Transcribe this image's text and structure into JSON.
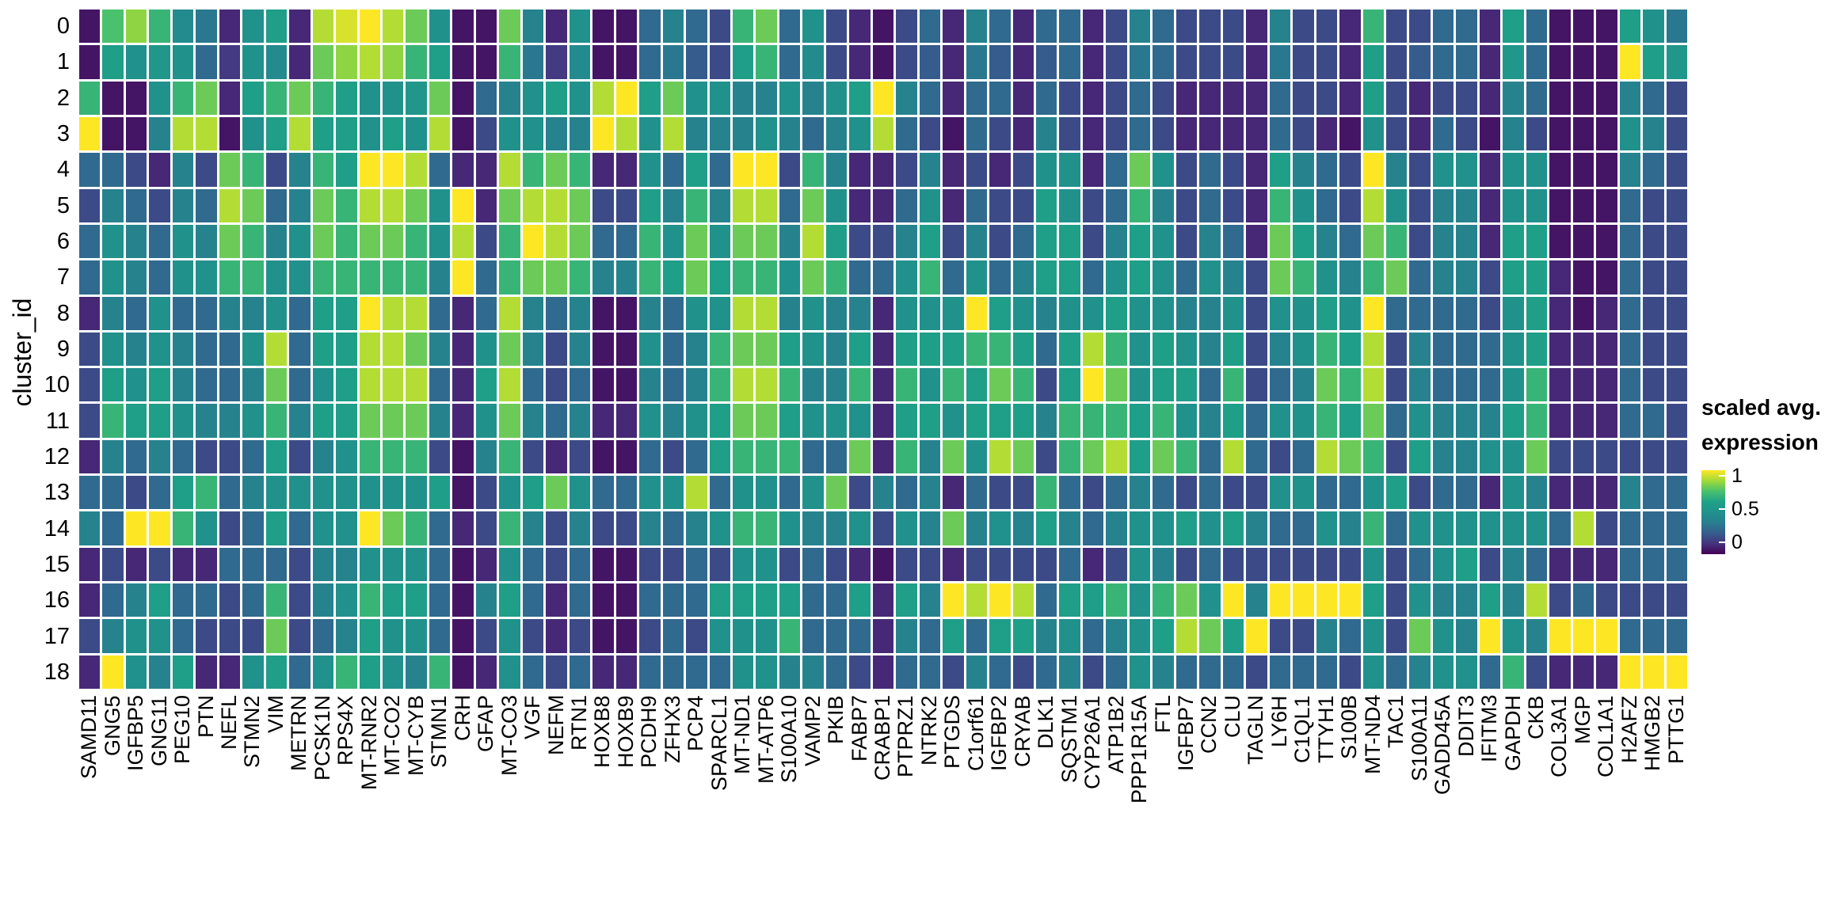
{
  "figure": {
    "y_axis_title": "cluster_id",
    "legend": {
      "title_line1": "scaled avg.",
      "title_line2": "expression",
      "ticks": [
        "1",
        "0.5",
        "0"
      ]
    },
    "colors": {
      "viridis_low": "#440154",
      "viridis_mid": "#21918c",
      "viridis_high": "#fde725",
      "grid_line": "#ffffff"
    }
  },
  "chart_data": {
    "type": "heatmap",
    "title": "",
    "xlabel": "",
    "ylabel": "cluster_id",
    "legend_title": "scaled avg. expression",
    "colormap": "viridis",
    "color_range": [
      0,
      1
    ],
    "rows": [
      "0",
      "1",
      "2",
      "3",
      "4",
      "5",
      "6",
      "7",
      "8",
      "9",
      "10",
      "11",
      "12",
      "13",
      "14",
      "15",
      "16",
      "17",
      "18"
    ],
    "columns": [
      "SAMD11",
      "GNG5",
      "IGFBP5",
      "GNG11",
      "PEG10",
      "PTN",
      "NEFL",
      "STMN2",
      "VIM",
      "METRN",
      "PCSK1N",
      "RPS4X",
      "MT-RNR2",
      "MT-CO2",
      "MT-CYB",
      "STMN1",
      "CRH",
      "GFAP",
      "MT-CO3",
      "VGF",
      "NEFM",
      "RTN1",
      "HOXB8",
      "HOXB9",
      "PCDH9",
      "ZFHX3",
      "PCP4",
      "SPARCL1",
      "MT-ND1",
      "MT-ATP6",
      "S100A10",
      "VAMP2",
      "PKIB",
      "FABP7",
      "CRABP1",
      "PTPRZ1",
      "NTRK2",
      "PTGDS",
      "C1orf61",
      "IGFBP2",
      "CRYAB",
      "DLK1",
      "SQSTM1",
      "CYP26A1",
      "ATP1B2",
      "PPP1R15A",
      "FTL",
      "IGFBP7",
      "CCN2",
      "CLU",
      "TAGLN",
      "LY6H",
      "C1QL1",
      "TTYH1",
      "S100B",
      "MT-ND4",
      "TAC1",
      "S100A11",
      "GADD45A",
      "DDIT3",
      "IFITM3",
      "GAPDH",
      "CKB",
      "COL3A1",
      "MGP",
      "COL1A1",
      "H2AFZ",
      "HMGB2",
      "PTTG1"
    ],
    "values": [
      [
        0.05,
        0.75,
        0.85,
        0.7,
        0.45,
        0.35,
        0.1,
        0.5,
        0.6,
        0.1,
        0.9,
        0.95,
        1,
        0.9,
        0.8,
        0.5,
        0.05,
        0.05,
        0.8,
        0.4,
        0.1,
        0.5,
        0.05,
        0.05,
        0.3,
        0.4,
        0.3,
        0.2,
        0.7,
        0.8,
        0.3,
        0.5,
        0.2,
        0.1,
        0.05,
        0.2,
        0.3,
        0.1,
        0.4,
        0.3,
        0.1,
        0.3,
        0.3,
        0.1,
        0.2,
        0.4,
        0.3,
        0.2,
        0.2,
        0.2,
        0.1,
        0.4,
        0.2,
        0.2,
        0.1,
        0.7,
        0.2,
        0.2,
        0.3,
        0.3,
        0.1,
        0.6,
        0.3,
        0.05,
        0.05,
        0.05,
        0.6,
        0.5,
        0.35
      ],
      [
        0.05,
        0.6,
        0.5,
        0.55,
        0.5,
        0.3,
        0.15,
        0.5,
        0.45,
        0.1,
        0.8,
        0.85,
        0.9,
        0.85,
        0.7,
        0.6,
        0.05,
        0.05,
        0.7,
        0.35,
        0.15,
        0.45,
        0.05,
        0.05,
        0.3,
        0.35,
        0.25,
        0.2,
        0.6,
        0.7,
        0.3,
        0.45,
        0.2,
        0.1,
        0.05,
        0.2,
        0.25,
        0.1,
        0.35,
        0.25,
        0.1,
        0.25,
        0.3,
        0.1,
        0.2,
        0.35,
        0.3,
        0.2,
        0.2,
        0.2,
        0.1,
        0.35,
        0.2,
        0.2,
        0.1,
        0.6,
        0.2,
        0.25,
        0.3,
        0.3,
        0.1,
        0.55,
        0.3,
        0.05,
        0.05,
        0.05,
        1,
        0.6,
        0.55
      ],
      [
        0.7,
        0.05,
        0.05,
        0.5,
        0.7,
        0.8,
        0.1,
        0.6,
        0.7,
        0.8,
        0.7,
        0.6,
        0.5,
        0.5,
        0.55,
        0.8,
        0.05,
        0.3,
        0.4,
        0.5,
        0.6,
        0.5,
        0.9,
        1,
        0.6,
        0.8,
        0.5,
        0.5,
        0.4,
        0.4,
        0.5,
        0.4,
        0.5,
        0.6,
        1,
        0.4,
        0.3,
        0.1,
        0.3,
        0.3,
        0.1,
        0.3,
        0.2,
        0.1,
        0.2,
        0.3,
        0.2,
        0.1,
        0.1,
        0.1,
        0.1,
        0.3,
        0.2,
        0.2,
        0.1,
        0.6,
        0.2,
        0.1,
        0.2,
        0.2,
        0.1,
        0.4,
        0.3,
        0.05,
        0.05,
        0.05,
        0.4,
        0.3,
        0.2
      ],
      [
        1,
        0.05,
        0.05,
        0.4,
        0.9,
        0.9,
        0.05,
        0.5,
        0.6,
        0.9,
        0.6,
        0.6,
        0.5,
        0.6,
        0.5,
        0.9,
        0.05,
        0.2,
        0.5,
        0.5,
        0.4,
        0.4,
        1,
        0.9,
        0.5,
        0.9,
        0.4,
        0.4,
        0.4,
        0.5,
        0.4,
        0.3,
        0.4,
        0.5,
        0.9,
        0.3,
        0.2,
        0.05,
        0.3,
        0.2,
        0.1,
        0.4,
        0.2,
        0.1,
        0.2,
        0.3,
        0.2,
        0.1,
        0.1,
        0.1,
        0.1,
        0.3,
        0.2,
        0.1,
        0.05,
        0.5,
        0.2,
        0.1,
        0.3,
        0.2,
        0.05,
        0.4,
        0.2,
        0.05,
        0.05,
        0.05,
        0.5,
        0.4,
        0.2
      ],
      [
        0.3,
        0.3,
        0.2,
        0.1,
        0.4,
        0.2,
        0.8,
        0.7,
        0.2,
        0.4,
        0.7,
        0.6,
        1,
        1,
        0.9,
        0.3,
        0.1,
        0.1,
        0.9,
        0.7,
        0.8,
        0.7,
        0.1,
        0.1,
        0.5,
        0.3,
        0.6,
        0.3,
        1,
        1,
        0.2,
        0.7,
        0.4,
        0.1,
        0.1,
        0.2,
        0.4,
        0.1,
        0.2,
        0.1,
        0.2,
        0.5,
        0.5,
        0.1,
        0.3,
        0.8,
        0.5,
        0.2,
        0.3,
        0.2,
        0.1,
        0.6,
        0.4,
        0.3,
        0.2,
        1,
        0.4,
        0.2,
        0.5,
        0.5,
        0.1,
        0.5,
        0.5,
        0.05,
        0.05,
        0.05,
        0.4,
        0.3,
        0.2
      ],
      [
        0.2,
        0.4,
        0.3,
        0.2,
        0.4,
        0.3,
        0.9,
        0.8,
        0.3,
        0.4,
        0.8,
        0.7,
        0.9,
        0.9,
        0.8,
        0.5,
        1,
        0.1,
        0.8,
        0.9,
        0.9,
        0.8,
        0.2,
        0.2,
        0.6,
        0.4,
        0.7,
        0.4,
        0.9,
        0.9,
        0.3,
        0.8,
        0.5,
        0.1,
        0.1,
        0.3,
        0.5,
        0.1,
        0.3,
        0.2,
        0.2,
        0.6,
        0.5,
        0.2,
        0.3,
        0.7,
        0.4,
        0.2,
        0.3,
        0.2,
        0.1,
        0.7,
        0.5,
        0.3,
        0.2,
        0.9,
        0.5,
        0.2,
        0.4,
        0.4,
        0.1,
        0.5,
        0.5,
        0.05,
        0.05,
        0.05,
        0.3,
        0.2,
        0.2
      ],
      [
        0.3,
        0.5,
        0.4,
        0.3,
        0.5,
        0.4,
        0.8,
        0.7,
        0.4,
        0.5,
        0.8,
        0.7,
        0.8,
        0.8,
        0.7,
        0.5,
        0.9,
        0.2,
        0.7,
        1,
        0.9,
        0.8,
        0.3,
        0.3,
        0.7,
        0.5,
        0.8,
        0.5,
        0.8,
        0.8,
        0.4,
        0.9,
        0.6,
        0.2,
        0.2,
        0.4,
        0.6,
        0.2,
        0.4,
        0.2,
        0.3,
        0.6,
        0.6,
        0.2,
        0.4,
        0.6,
        0.5,
        0.2,
        0.4,
        0.3,
        0.1,
        0.8,
        0.6,
        0.4,
        0.3,
        0.8,
        0.7,
        0.2,
        0.4,
        0.4,
        0.1,
        0.6,
        0.6,
        0.05,
        0.05,
        0.05,
        0.3,
        0.2,
        0.2
      ],
      [
        0.3,
        0.5,
        0.4,
        0.3,
        0.5,
        0.5,
        0.7,
        0.7,
        0.5,
        0.5,
        0.7,
        0.7,
        0.7,
        0.7,
        0.7,
        0.4,
        1,
        0.3,
        0.7,
        0.8,
        0.8,
        0.7,
        0.4,
        0.4,
        0.7,
        0.6,
        0.8,
        0.6,
        0.7,
        0.7,
        0.5,
        0.8,
        0.7,
        0.3,
        0.3,
        0.5,
        0.7,
        0.3,
        0.5,
        0.3,
        0.4,
        0.6,
        0.6,
        0.3,
        0.5,
        0.6,
        0.5,
        0.3,
        0.5,
        0.4,
        0.2,
        0.8,
        0.7,
        0.5,
        0.4,
        0.7,
        0.8,
        0.3,
        0.4,
        0.4,
        0.2,
        0.6,
        0.6,
        0.1,
        0.05,
        0.05,
        0.3,
        0.2,
        0.2
      ],
      [
        0.1,
        0.4,
        0.3,
        0.5,
        0.3,
        0.3,
        0.4,
        0.4,
        0.5,
        0.3,
        0.6,
        0.6,
        1,
        0.9,
        0.9,
        0.3,
        0.1,
        0.3,
        0.9,
        0.4,
        0.3,
        0.4,
        0.05,
        0.05,
        0.4,
        0.3,
        0.5,
        0.5,
        0.9,
        0.9,
        0.4,
        0.5,
        0.4,
        0.4,
        0.1,
        0.5,
        0.5,
        0.5,
        1,
        0.6,
        0.5,
        0.4,
        0.5,
        0.5,
        0.6,
        0.5,
        0.5,
        0.4,
        0.4,
        0.5,
        0.2,
        0.5,
        0.5,
        0.6,
        0.5,
        1,
        0.3,
        0.3,
        0.3,
        0.3,
        0.2,
        0.5,
        0.6,
        0.1,
        0.05,
        0.1,
        0.3,
        0.2,
        0.2
      ],
      [
        0.2,
        0.5,
        0.4,
        0.5,
        0.4,
        0.3,
        0.3,
        0.5,
        0.9,
        0.3,
        0.6,
        0.6,
        0.9,
        0.9,
        0.8,
        0.4,
        0.1,
        0.5,
        0.8,
        0.4,
        0.2,
        0.4,
        0.05,
        0.05,
        0.5,
        0.3,
        0.4,
        0.7,
        0.8,
        0.8,
        0.6,
        0.5,
        0.4,
        0.6,
        0.1,
        0.6,
        0.6,
        0.6,
        0.7,
        0.7,
        0.6,
        0.3,
        0.6,
        0.9,
        0.7,
        0.5,
        0.6,
        0.5,
        0.4,
        0.6,
        0.2,
        0.4,
        0.5,
        0.7,
        0.6,
        0.9,
        0.2,
        0.4,
        0.3,
        0.3,
        0.3,
        0.5,
        0.6,
        0.1,
        0.1,
        0.1,
        0.3,
        0.2,
        0.2
      ],
      [
        0.2,
        0.6,
        0.5,
        0.6,
        0.4,
        0.3,
        0.3,
        0.4,
        0.8,
        0.3,
        0.5,
        0.6,
        0.9,
        0.9,
        0.9,
        0.3,
        0.1,
        0.6,
        0.9,
        0.3,
        0.2,
        0.3,
        0.05,
        0.05,
        0.4,
        0.3,
        0.4,
        0.7,
        0.9,
        0.9,
        0.7,
        0.4,
        0.4,
        0.7,
        0.1,
        0.7,
        0.5,
        0.7,
        0.6,
        0.8,
        0.7,
        0.2,
        0.6,
        1,
        0.8,
        0.5,
        0.6,
        0.6,
        0.3,
        0.7,
        0.2,
        0.3,
        0.4,
        0.8,
        0.7,
        0.9,
        0.2,
        0.4,
        0.3,
        0.3,
        0.3,
        0.5,
        0.7,
        0.1,
        0.1,
        0.1,
        0.3,
        0.2,
        0.2
      ],
      [
        0.2,
        0.7,
        0.6,
        0.6,
        0.5,
        0.4,
        0.4,
        0.5,
        0.7,
        0.4,
        0.6,
        0.6,
        0.8,
        0.8,
        0.8,
        0.4,
        0.1,
        0.5,
        0.8,
        0.4,
        0.3,
        0.4,
        0.1,
        0.1,
        0.5,
        0.4,
        0.5,
        0.6,
        0.8,
        0.8,
        0.6,
        0.5,
        0.5,
        0.5,
        0.1,
        0.6,
        0.6,
        0.5,
        0.6,
        0.6,
        0.6,
        0.4,
        0.7,
        0.7,
        0.7,
        0.6,
        0.7,
        0.5,
        0.4,
        0.6,
        0.3,
        0.5,
        0.5,
        0.7,
        0.6,
        0.8,
        0.3,
        0.5,
        0.4,
        0.4,
        0.4,
        0.6,
        0.7,
        0.1,
        0.1,
        0.1,
        0.3,
        0.3,
        0.2
      ],
      [
        0.1,
        0.4,
        0.3,
        0.4,
        0.3,
        0.2,
        0.2,
        0.3,
        0.6,
        0.2,
        0.4,
        0.5,
        0.7,
        0.7,
        0.7,
        0.2,
        0.05,
        0.4,
        0.7,
        0.2,
        0.1,
        0.2,
        0.05,
        0.05,
        0.3,
        0.2,
        0.3,
        0.6,
        0.7,
        0.7,
        0.7,
        0.3,
        0.3,
        0.8,
        0.1,
        0.7,
        0.4,
        0.8,
        0.5,
        0.9,
        0.8,
        0.2,
        0.7,
        0.8,
        0.9,
        0.6,
        0.8,
        0.7,
        0.3,
        0.9,
        0.3,
        0.2,
        0.3,
        0.9,
        0.8,
        0.7,
        0.2,
        0.6,
        0.4,
        0.4,
        0.5,
        0.5,
        0.8,
        0.2,
        0.2,
        0.2,
        0.2,
        0.2,
        0.2
      ],
      [
        0.3,
        0.3,
        0.2,
        0.3,
        0.6,
        0.7,
        0.3,
        0.4,
        0.5,
        0.5,
        0.5,
        0.5,
        0.5,
        0.5,
        0.5,
        0.6,
        0.05,
        0.2,
        0.5,
        0.6,
        0.8,
        0.5,
        0.3,
        0.3,
        0.5,
        0.5,
        0.9,
        0.3,
        0.5,
        0.5,
        0.3,
        0.5,
        0.8,
        0.2,
        0.4,
        0.3,
        0.4,
        0.1,
        0.3,
        0.2,
        0.2,
        0.7,
        0.3,
        0.2,
        0.3,
        0.4,
        0.3,
        0.2,
        0.3,
        0.2,
        0.2,
        0.5,
        0.5,
        0.3,
        0.3,
        0.5,
        0.6,
        0.2,
        0.3,
        0.3,
        0.1,
        0.5,
        0.4,
        0.1,
        0.1,
        0.1,
        0.4,
        0.3,
        0.3
      ],
      [
        0.4,
        0.3,
        1,
        1,
        0.7,
        0.5,
        0.2,
        0.3,
        0.6,
        0.3,
        0.5,
        0.5,
        1,
        0.8,
        0.7,
        0.3,
        0.1,
        0.2,
        0.7,
        0.4,
        0.2,
        0.4,
        0.2,
        0.2,
        0.4,
        0.3,
        0.4,
        0.5,
        0.7,
        0.7,
        0.5,
        0.4,
        0.4,
        0.5,
        0.2,
        0.5,
        0.4,
        0.8,
        0.4,
        0.5,
        0.4,
        0.6,
        0.4,
        0.3,
        0.4,
        0.5,
        0.5,
        0.6,
        0.5,
        0.6,
        0.4,
        0.3,
        0.3,
        0.5,
        0.4,
        0.7,
        0.3,
        0.5,
        0.5,
        0.5,
        0.5,
        0.5,
        0.5,
        0.3,
        0.9,
        0.2,
        0.3,
        0.3,
        0.3
      ],
      [
        0.1,
        0.2,
        0.1,
        0.2,
        0.1,
        0.1,
        0.3,
        0.3,
        0.3,
        0.2,
        0.4,
        0.4,
        0.5,
        0.5,
        0.5,
        0.3,
        0.05,
        0.1,
        0.5,
        0.3,
        0.2,
        0.3,
        0.05,
        0.05,
        0.2,
        0.2,
        0.3,
        0.2,
        0.5,
        0.5,
        0.2,
        0.3,
        0.2,
        0.1,
        0.05,
        0.2,
        0.2,
        0.1,
        0.2,
        0.2,
        0.2,
        0.2,
        0.3,
        0.1,
        0.2,
        0.5,
        0.4,
        0.2,
        0.3,
        0.2,
        0.2,
        0.2,
        0.2,
        0.2,
        0.2,
        0.5,
        0.2,
        0.3,
        0.5,
        0.6,
        0.2,
        0.4,
        0.3,
        0.1,
        0.1,
        0.1,
        0.3,
        0.3,
        0.3
      ],
      [
        0.1,
        0.3,
        0.4,
        0.6,
        0.3,
        0.3,
        0.2,
        0.3,
        0.7,
        0.2,
        0.4,
        0.5,
        0.7,
        0.6,
        0.6,
        0.3,
        0.05,
        0.4,
        0.6,
        0.3,
        0.1,
        0.3,
        0.05,
        0.05,
        0.3,
        0.3,
        0.3,
        0.6,
        0.6,
        0.6,
        0.6,
        0.3,
        0.3,
        0.6,
        0.1,
        0.6,
        0.4,
        1,
        0.9,
        1,
        0.9,
        0.3,
        0.6,
        0.6,
        0.7,
        0.5,
        0.7,
        0.8,
        0.5,
        1,
        0.4,
        1,
        1,
        1,
        1,
        0.6,
        0.2,
        0.5,
        0.4,
        0.4,
        0.6,
        0.4,
        0.9,
        0.2,
        0.3,
        0.2,
        0.2,
        0.2,
        0.2
      ],
      [
        0.2,
        0.4,
        0.5,
        0.5,
        0.3,
        0.2,
        0.2,
        0.2,
        0.8,
        0.2,
        0.3,
        0.4,
        0.6,
        0.5,
        0.5,
        0.3,
        0.05,
        0.2,
        0.5,
        0.2,
        0.1,
        0.2,
        0.05,
        0.05,
        0.2,
        0.3,
        0.2,
        0.5,
        0.5,
        0.5,
        0.7,
        0.3,
        0.3,
        0.3,
        0.1,
        0.4,
        0.3,
        0.6,
        0.3,
        0.6,
        0.6,
        0.4,
        0.5,
        0.3,
        0.4,
        0.5,
        0.6,
        0.9,
        0.8,
        0.6,
        1,
        0.2,
        0.2,
        0.4,
        0.3,
        0.5,
        0.2,
        0.8,
        0.5,
        0.4,
        1,
        0.5,
        0.4,
        1,
        1,
        1,
        0.3,
        0.3,
        0.3
      ],
      [
        0.1,
        1,
        0.5,
        0.4,
        0.6,
        0.1,
        0.1,
        0.5,
        0.6,
        0.3,
        0.5,
        0.7,
        0.6,
        0.5,
        0.4,
        0.7,
        0.05,
        0.1,
        0.5,
        0.3,
        0.2,
        0.3,
        0.1,
        0.1,
        0.3,
        0.3,
        0.3,
        0.3,
        0.5,
        0.5,
        0.4,
        0.4,
        0.3,
        0.2,
        0.1,
        0.3,
        0.3,
        0.2,
        0.4,
        0.3,
        0.2,
        0.3,
        0.4,
        0.2,
        0.3,
        0.5,
        0.4,
        0.3,
        0.3,
        0.3,
        0.2,
        0.3,
        0.3,
        0.3,
        0.2,
        0.5,
        0.3,
        0.4,
        0.5,
        0.5,
        0.3,
        0.7,
        0.2,
        0.1,
        0.1,
        0.1,
        1,
        1,
        1
      ]
    ]
  }
}
